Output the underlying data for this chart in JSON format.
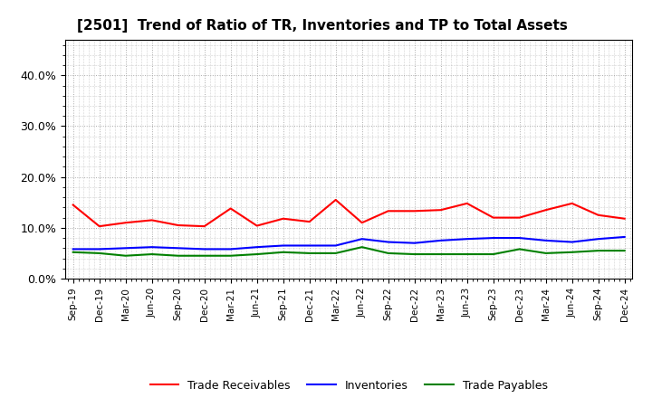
{
  "title": "[2501]  Trend of Ratio of TR, Inventories and TP to Total Assets",
  "x_labels": [
    "Sep-19",
    "Dec-19",
    "Mar-20",
    "Jun-20",
    "Sep-20",
    "Dec-20",
    "Mar-21",
    "Jun-21",
    "Sep-21",
    "Dec-21",
    "Mar-22",
    "Jun-22",
    "Sep-22",
    "Dec-22",
    "Mar-23",
    "Jun-23",
    "Sep-23",
    "Dec-23",
    "Mar-24",
    "Jun-24",
    "Sep-24",
    "Dec-24"
  ],
  "trade_receivables": [
    14.5,
    10.3,
    11.0,
    11.5,
    10.5,
    10.3,
    13.8,
    10.4,
    11.8,
    11.2,
    15.5,
    11.0,
    13.3,
    13.3,
    13.5,
    14.8,
    12.0,
    12.0,
    13.5,
    14.8,
    12.5,
    11.8
  ],
  "inventories": [
    5.8,
    5.8,
    6.0,
    6.2,
    6.0,
    5.8,
    5.8,
    6.2,
    6.5,
    6.5,
    6.5,
    7.8,
    7.2,
    7.0,
    7.5,
    7.8,
    8.0,
    8.0,
    7.5,
    7.2,
    7.8,
    8.2
  ],
  "trade_payables": [
    5.2,
    5.0,
    4.5,
    4.8,
    4.5,
    4.5,
    4.5,
    4.8,
    5.2,
    5.0,
    5.0,
    6.2,
    5.0,
    4.8,
    4.8,
    4.8,
    4.8,
    5.8,
    5.0,
    5.2,
    5.5,
    5.5
  ],
  "tr_color": "#ff0000",
  "inv_color": "#0000ff",
  "tp_color": "#008000",
  "ylim": [
    0,
    47
  ],
  "yticks": [
    0.0,
    10.0,
    20.0,
    30.0,
    40.0
  ],
  "background_color": "#ffffff",
  "plot_bg_color": "#ffffff",
  "grid_color": "#aaaaaa",
  "title_fontsize": 11,
  "legend_labels": [
    "Trade Receivables",
    "Inventories",
    "Trade Payables"
  ]
}
